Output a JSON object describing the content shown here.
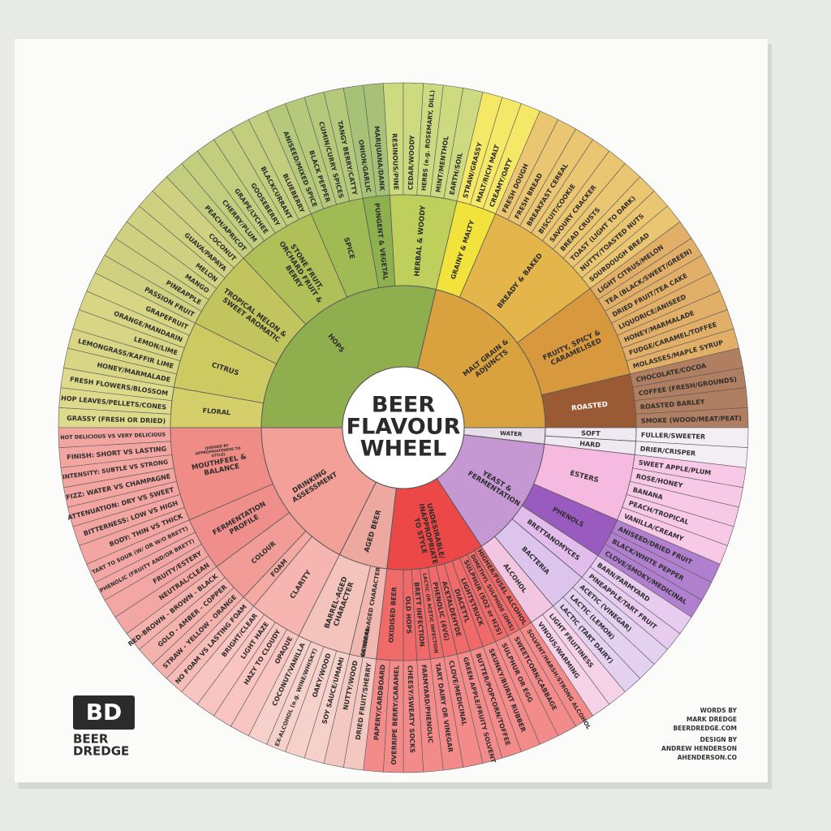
{
  "title": [
    "BEER",
    "FLAVOUR",
    "WHEEL"
  ],
  "wheel": {
    "groups": [
      {
        "label": "HOPS",
        "color": "#8fae4e",
        "children": [
          {
            "label": "FLORAL",
            "color": "#d4cf6a",
            "items": [
              "GRASSY (FRESH OR DRIED)",
              "HOP LEAVES/PELLETS/CONES",
              "FRESH FLOWERS/BLOSSOM"
            ]
          },
          {
            "label": "CITRUS",
            "color": "#cdca62",
            "items": [
              "HONEY/MARMALADE",
              "LEMONGRASS/KAFFIR LIME",
              "LEMON/LIME",
              "ORANGE/MANDARIN",
              "GRAPEFRUIT"
            ]
          },
          {
            "label": "TROPICAL MELON & SWEET AROMATIC",
            "color": "#c2c45e",
            "items": [
              "PASSION FRUIT",
              "PINEAPPLE",
              "MANGO",
              "MELON",
              "GUAVA/PAPAYA",
              "COCONUT"
            ]
          },
          {
            "label": "STONE FRUIT, ORCHARD FRUIT & BERRY",
            "color": "#b1bf59",
            "items": [
              "PEACH/APRICOT",
              "CHERRY/PLUM",
              "GRAPE/LYCHEE",
              "GOOSEBERRY",
              "BLACKCURRANT",
              "BLUEBERRY"
            ]
          },
          {
            "label": "SPICE",
            "color": "#a0ba54",
            "items": [
              "ANISEED/MIXED SPICE",
              "BLACK PEPPER",
              "CUMIN/CURRY SPICES",
              "TANGY BERRY/CATTY"
            ]
          },
          {
            "label": "PUNGENT & VEGETAL",
            "color": "#8eb150",
            "items": [
              "ONION/GARLIC",
              "MARIJUANA/DANK"
            ]
          },
          {
            "label": "HERBAL & WOODY",
            "color": "#bfcf5c",
            "items": [
              "RESINOUS/PINE",
              "CEDAR/WOODY",
              "HERBS (e.g. ROSEMARY, DILL)",
              "MINT/MENTHOL",
              "EARTH/SOIL"
            ]
          }
        ]
      },
      {
        "label": "MALT GRAIN & ADJUNCTS",
        "color": "#d9a23e",
        "children": [
          {
            "label": "GRAINY & MALTY",
            "color": "#f2e23c",
            "items": [
              "STRAW/GRASSY",
              "MALT/RICH MALT",
              "CREAMY/OATY"
            ]
          },
          {
            "label": "BREADY & BAKED",
            "color": "#e4b54a",
            "items": [
              "FRESH DOUGH",
              "FRESH BREAD",
              "BREAKFAST CEREAL",
              "BISCUIT/COOKIE",
              "SAVOURY CRACKER",
              "BREAD CRUSTS",
              "TOAST (LIGHT TO DARK)",
              "NUTTY/TOASTED NUTS",
              "SOURDOUGH BREAD"
            ]
          },
          {
            "label": "FRUITY, SPICY & CARAMELISED",
            "color": "#d8983e",
            "items": [
              "LIGHT CITRUS/MELON",
              "TEA (BLACK/SWEET/GREEN)",
              "DRIED FRUIT/TEA CAKE",
              "LIQUORICE/ANISEED",
              "HONEY/MARMALADE",
              "FUDGE/CARAMEL/TOFFEE",
              "MOLASSES/MAPLE SYRUP"
            ]
          },
          {
            "label": "ROASTED",
            "color": "#9a5a34",
            "items": [
              "CHOCOLATE/COCOA",
              "COFFEE (FRESH/GROUNDS)",
              "ROASTED BARLEY",
              "SMOKE (WOOD/MEAT/PEAT)"
            ]
          }
        ]
      },
      {
        "label": "WATER",
        "color": "#e6dee8",
        "children": [
          {
            "label": "SOFT",
            "color": "#efe9f1",
            "items": [
              "FULLER/SWEETER"
            ]
          },
          {
            "label": "HARD",
            "color": "#efe9f1",
            "items": [
              "DRIER/CRISPER"
            ]
          }
        ]
      },
      {
        "label": "YEAST & FERMENTATION",
        "color": "#c597d3",
        "children": [
          {
            "label": "ESTERS",
            "color": "#f6b9e0",
            "items": [
              "SWEET APPLE/PLUM",
              "ROSE/HONEY",
              "BANANA",
              "PEACH/TROPICAL",
              "VANILLA/CREAMY"
            ]
          },
          {
            "label": "PHENOLS",
            "color": "#9a5bc0",
            "items": [
              "ANISEED/DRIED FRUIT",
              "BLACK/WHITE PEPPER",
              "CLOVE/SMOKY/MEDICINAL"
            ]
          },
          {
            "label": "BRETTANOMYCES",
            "color": "#e2bdeb",
            "items": [
              "BARN/FARMYARD",
              "PINEAPPLE/TART FRUIT"
            ]
          },
          {
            "label": "BACTERIA",
            "color": "#dcc4ec",
            "items": [
              "ACETIC (VINEGAR)",
              "LACTIC (LEMON)",
              "LACTIC (TART DAIRY)"
            ]
          },
          {
            "label": "ALCOHOL",
            "color": "#f2c5e0",
            "items": [
              "LIGHT FRUITINESS",
              "VINOUS/WARMING"
            ]
          }
        ]
      },
      {
        "label": "UNDESIRABLE/ INAPPROPRIATE TO STYLE",
        "color": "#ec4848",
        "children": [
          {
            "label": "HIGHER/FUSEL ALCOHOL",
            "color": "#f06a6a",
            "items": [
              "SOLVENT/HARSH/STRONG ALCOHOL"
            ]
          },
          {
            "label": "DIMETHYL SULPHIDE (DMS)",
            "color": "#f06a6a",
            "items": [
              "SWEETCORN/CABBAGE"
            ]
          },
          {
            "label": "SULPHUR (SO2 or H2S)",
            "color": "#f06a6a",
            "items": [
              "SULPHUR OR EGG"
            ]
          },
          {
            "label": "LIGHTSTRUCK",
            "color": "#f06a6a",
            "items": [
              "SKUNKY/BURNT RUBBER"
            ]
          },
          {
            "label": "DIACETYL",
            "color": "#f06a6a",
            "items": [
              "BUTTER/POPCORN/TOFFEE"
            ]
          },
          {
            "label": "ACETALDEHYDE",
            "color": "#f06a6a",
            "items": [
              "GREEN APPLE/FRUITY SOLVENT"
            ]
          },
          {
            "label": "PHENOLIC (4VG)",
            "color": "#f06a6a",
            "items": [
              "CLOVE/MEDICINAL"
            ]
          },
          {
            "label": "LACTIC OR ACETIC INFECTION",
            "color": "#f06a6a",
            "items": [
              "TART DAIRY OR VINEGAR"
            ]
          },
          {
            "label": "BRETT INFECTION",
            "color": "#f06a6a",
            "items": [
              "FARMYARD/PHENOLIC"
            ]
          },
          {
            "label": "OLD HOPS",
            "color": "#f06a6a",
            "items": [
              "CHEESY/SWEATY SOCKS"
            ]
          },
          {
            "label": "OXIDISED BEER",
            "color": "#f06a6a",
            "items": [
              "OVERRIPE BERRY/CARAMEL",
              "PAPERY/CARDBOARD"
            ]
          }
        ]
      },
      {
        "label": "AGED BEER",
        "color": "#eda8a0",
        "children": [
          {
            "label": "GENERAL-AGED CHARACTER",
            "note": "OXIDATION",
            "color": "#f0b8b0",
            "items": [
              "DRIED FRUIT/SHERRY",
              "NUTTY/WOOD"
            ]
          },
          {
            "label": "BARREL-AGED CHARACTER",
            "color": "#f4c4bc",
            "items": [
              "SOY SAUCE/UMAMI",
              "OAKY/WOOD",
              "EX-ALCOHOL (e.g. WINE/WHISKY)",
              "COCONUT/VANILLA"
            ]
          }
        ]
      },
      {
        "label": "DRINKING ASSESSMENT",
        "color": "#f2a098",
        "children": [
          {
            "label": "CLARITY",
            "color": "#f6b5b0",
            "items": [
              "OPAQUE",
              "HAZY TO CLOUDY",
              "LIGHT HAZE",
              "BRIGHT/CLEAR"
            ]
          },
          {
            "label": "FOAM",
            "color": "#f4a9a3",
            "items": [
              "NO FOAM VS LASTING FOAM"
            ]
          },
          {
            "label": "COLOUR",
            "color": "#f19c96",
            "items": [
              "STRAW - YELLOW - ORANGE",
              "GOLD - AMBER - COPPER",
              "RED-BROWN - BROWN - BLACK"
            ]
          },
          {
            "label": "FERMENTATION PROFILE",
            "color": "#ef8e8a",
            "items": [
              "NEUTRAL/CLEAN",
              "FRUITY/ESTERY",
              "PHENOLIC (FRUITY AND/OR BRETT)",
              "TART TO SOUR (W/ OR W/O BRETT)"
            ]
          },
          {
            "label": "MOUTHFEEL & BALANCE",
            "note": "(JUDGED BY APPROPRIATENESS TO STYLE)",
            "color": "#ef8c86",
            "items": [
              "BODY: THIN VS THICK",
              "BITTERNESS: LOW VS HIGH",
              "ATTENUATION: DRY VS SWEET",
              "FIZZ: WATER VS CHAMPAGNE",
              "INTENSITY: SUBTLE VS STRONG",
              "FINISH: SHORT VS LASTING",
              "NOT DELICIOUS VS VERY DELICIOUS"
            ]
          }
        ]
      }
    ]
  },
  "logo": {
    "mark": "BD",
    "lines": [
      "BEER",
      "DREDGE"
    ]
  },
  "credits": [
    "WORDS BY",
    "MARK DREDGE",
    "BEERDREDGE.COM",
    "DESIGN BY",
    "ANDREW HENDERSON",
    "AHENDERSON.CO"
  ]
}
